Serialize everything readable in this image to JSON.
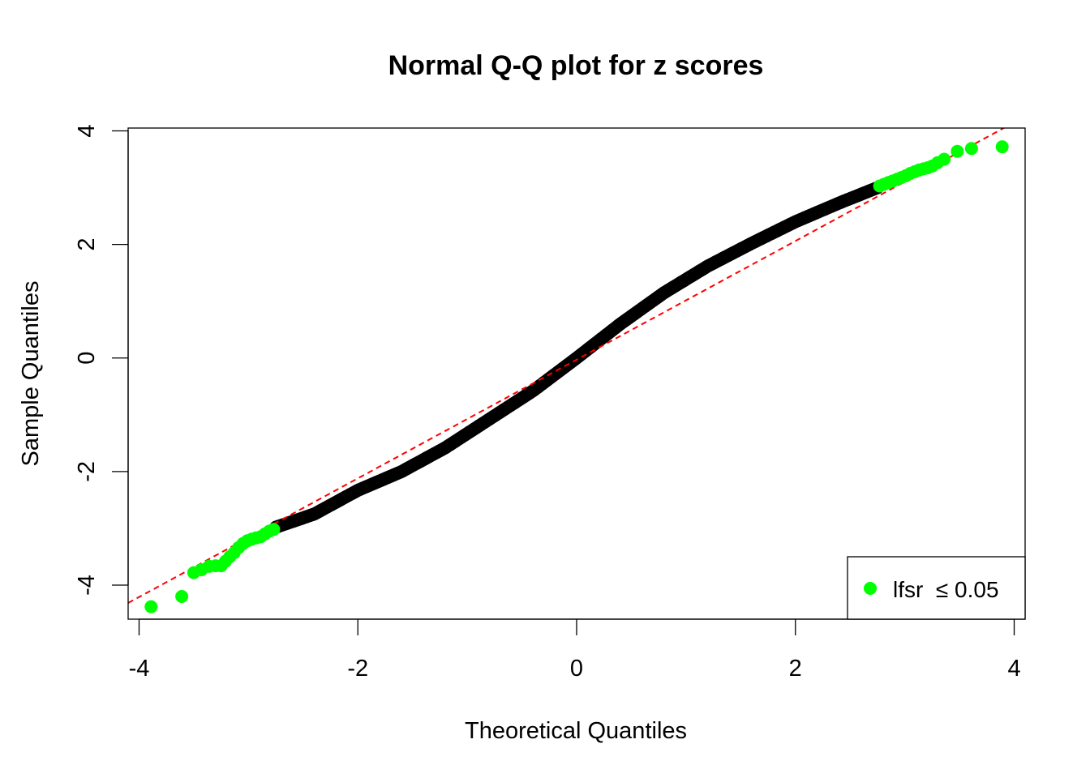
{
  "chart_data": {
    "type": "scatter",
    "title": "Normal Q-Q plot for z scores",
    "xlabel": "Theoretical Quantiles",
    "ylabel": "Sample Quantiles",
    "xlim": [
      -4.1,
      4.1
    ],
    "ylim": [
      -4.6,
      4.05
    ],
    "x_ticks": [
      -4,
      -2,
      0,
      2,
      4
    ],
    "x_tick_labels": [
      "-4",
      "-2",
      "0",
      "2",
      "4"
    ],
    "y_ticks": [
      -4,
      -2,
      0,
      2,
      4
    ],
    "y_tick_labels": [
      "-4",
      "-2",
      "0",
      "2",
      "4"
    ],
    "grid": false,
    "legend_placement": "bottom-right",
    "colors": {
      "highlight": "#00ff00",
      "points": "#000000",
      "reference_line": "#ff0000"
    },
    "reference_line": {
      "slope": 1.045,
      "intercept": -0.03,
      "style": "dashed"
    },
    "bulk_curve": {
      "description_free": true,
      "x": [
        -2.75,
        -2.4,
        -2.0,
        -1.6,
        -1.2,
        -0.8,
        -0.4,
        0.0,
        0.4,
        0.8,
        1.2,
        1.6,
        2.0,
        2.4,
        2.75
      ],
      "y": [
        -2.98,
        -2.75,
        -2.33,
        -2.0,
        -1.58,
        -1.08,
        -0.58,
        0.0,
        0.6,
        1.15,
        1.62,
        2.02,
        2.4,
        2.73,
        3.0
      ]
    },
    "series": [
      {
        "name": "lfsr ≤ 0.05",
        "points": [
          [
            -3.89,
            -4.38
          ],
          [
            -3.61,
            -4.2
          ],
          [
            -3.5,
            -3.78
          ],
          [
            -3.43,
            -3.73
          ],
          [
            -3.36,
            -3.67
          ],
          [
            -3.3,
            -3.66
          ],
          [
            -3.25,
            -3.66
          ],
          [
            -3.21,
            -3.58
          ],
          [
            -3.17,
            -3.5
          ],
          [
            -3.13,
            -3.43
          ],
          [
            -3.09,
            -3.34
          ],
          [
            -3.05,
            -3.27
          ],
          [
            -3.01,
            -3.22
          ],
          [
            -2.97,
            -3.19
          ],
          [
            -2.93,
            -3.17
          ],
          [
            -2.89,
            -3.15
          ],
          [
            -2.85,
            -3.1
          ],
          [
            -2.81,
            -3.05
          ],
          [
            -2.77,
            -3.02
          ],
          [
            2.77,
            3.03
          ],
          [
            2.81,
            3.06
          ],
          [
            2.85,
            3.09
          ],
          [
            2.89,
            3.12
          ],
          [
            2.93,
            3.15
          ],
          [
            2.97,
            3.18
          ],
          [
            3.01,
            3.21
          ],
          [
            3.05,
            3.25
          ],
          [
            3.09,
            3.28
          ],
          [
            3.13,
            3.31
          ],
          [
            3.17,
            3.33
          ],
          [
            3.21,
            3.35
          ],
          [
            3.25,
            3.38
          ],
          [
            3.3,
            3.44
          ],
          [
            3.36,
            3.5
          ],
          [
            3.48,
            3.64
          ],
          [
            3.61,
            3.69
          ],
          [
            3.89,
            3.72
          ]
        ]
      }
    ]
  },
  "legend": {
    "label": "lfsr  ≤ 0.05"
  }
}
